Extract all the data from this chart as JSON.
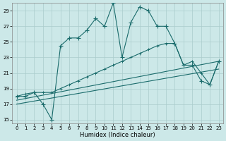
{
  "xlabel": "Humidex (Indice chaleur)",
  "bg_color": "#cce8e8",
  "grid_color": "#aacccc",
  "line_color": "#1a6b6b",
  "xlim": [
    -0.5,
    23.5
  ],
  "ylim": [
    14.5,
    30
  ],
  "xticks": [
    0,
    1,
    2,
    3,
    4,
    5,
    6,
    7,
    8,
    9,
    10,
    11,
    12,
    13,
    14,
    15,
    16,
    17,
    18,
    19,
    20,
    21,
    22,
    23
  ],
  "yticks": [
    15,
    17,
    19,
    21,
    23,
    25,
    27,
    29
  ],
  "line_main_x": [
    0,
    1,
    2,
    3,
    4,
    5,
    6,
    7,
    8,
    9,
    10,
    11,
    12,
    13,
    14,
    15,
    16,
    17,
    18,
    19,
    20,
    21,
    22,
    23
  ],
  "line_main_y": [
    18,
    18,
    18.5,
    17,
    15,
    24.5,
    25.5,
    25.5,
    26.5,
    28,
    27,
    30,
    23,
    27.5,
    29.5,
    29,
    27,
    27,
    24.8,
    22,
    22,
    20,
    19.5,
    22.5
  ],
  "line2_x": [
    0,
    1,
    2,
    3,
    4,
    5,
    6,
    7,
    8,
    9,
    10,
    11,
    12,
    13,
    14,
    15,
    16,
    17,
    18,
    19,
    20,
    21,
    22,
    23
  ],
  "line2_y": [
    18,
    18.3,
    18.5,
    18.5,
    18.5,
    19.0,
    19.5,
    20.0,
    20.5,
    21.0,
    21.5,
    22.0,
    22.5,
    23.0,
    23.5,
    24.0,
    24.5,
    24.8,
    24.8,
    22.0,
    22.5,
    21.0,
    19.5,
    22.5
  ],
  "line3_x": [
    0,
    23
  ],
  "line3_y": [
    17.5,
    22.5
  ],
  "line4_x": [
    0,
    23
  ],
  "line4_y": [
    17.0,
    21.5
  ]
}
